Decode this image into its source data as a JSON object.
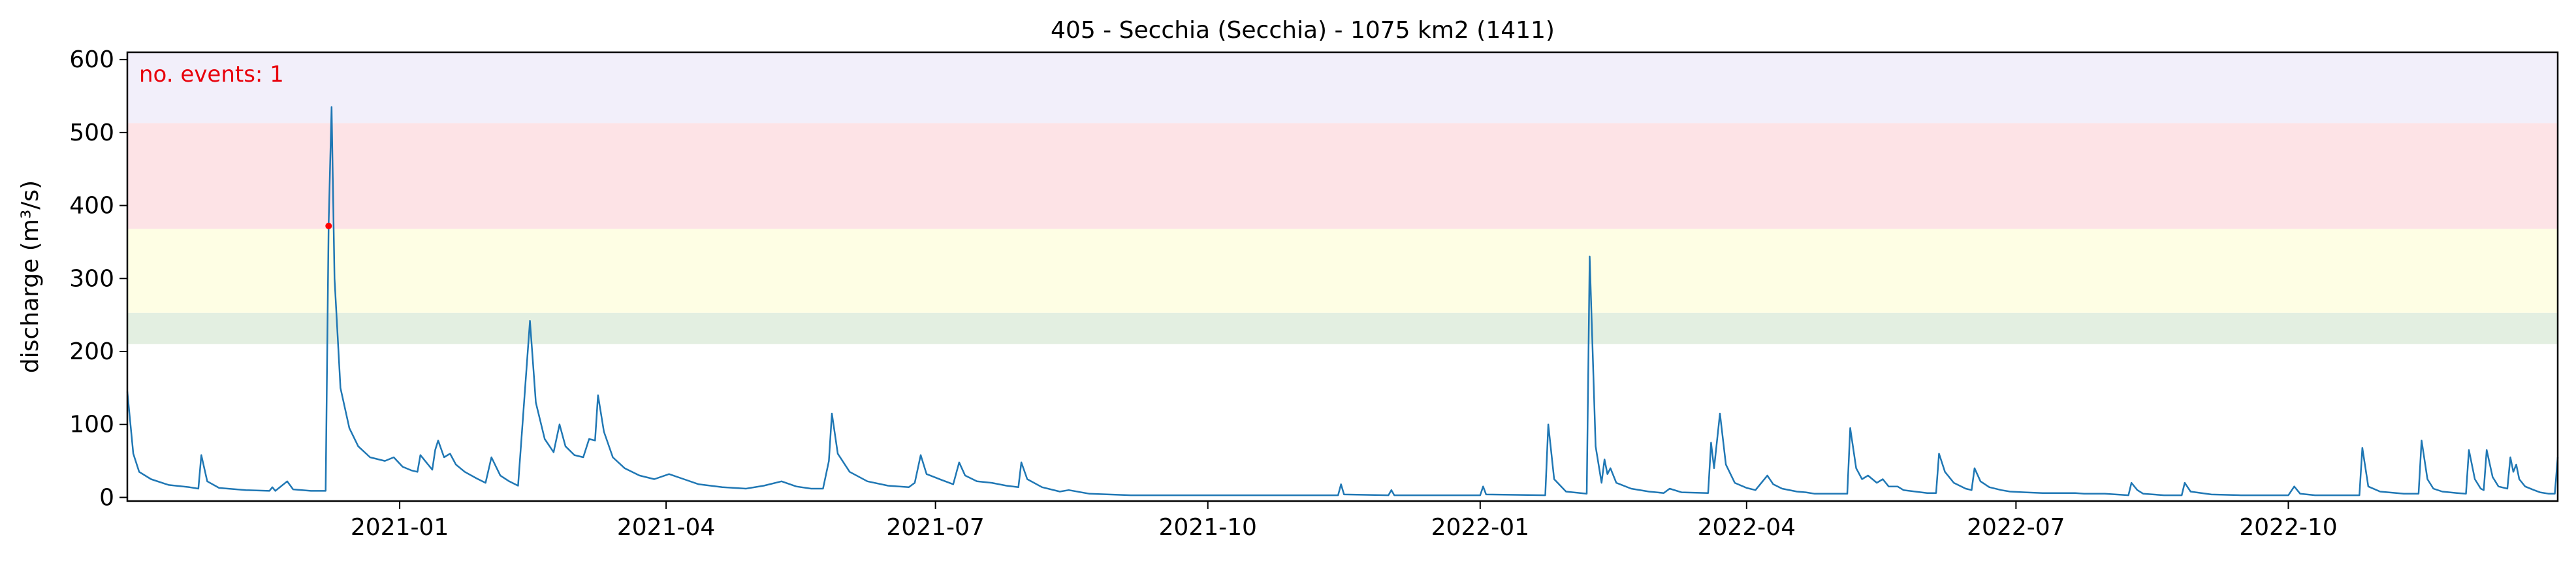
{
  "chart_data": {
    "type": "line",
    "title": "405 - Secchia (Secchia) - 1075 km2 (1411)",
    "xlabel": "",
    "ylabel": "discharge (m³/s)",
    "xlim": [
      "2020-10-01",
      "2022-12-31"
    ],
    "ylim": [
      -5,
      610
    ],
    "grid": false,
    "x_ticks": [
      "2021-01",
      "2021-04",
      "2021-07",
      "2021-10",
      "2022-01",
      "2022-04",
      "2022-07",
      "2022-10"
    ],
    "x_tick_dates": [
      "2021-01-01",
      "2021-04-01",
      "2021-07-01",
      "2021-10-01",
      "2022-01-01",
      "2022-04-01",
      "2022-07-01",
      "2022-10-01"
    ],
    "y_ticks": [
      0,
      100,
      200,
      300,
      400,
      500,
      600
    ],
    "bands": [
      {
        "from": 210,
        "to": 253,
        "color": "#e3efe1"
      },
      {
        "from": 253,
        "to": 368,
        "color": "#fefee4"
      },
      {
        "from": 368,
        "to": 513,
        "color": "#fde3e6"
      },
      {
        "from": 513,
        "to": 610,
        "color": "#f2effa"
      }
    ],
    "annotation": {
      "text": "no. events: 1",
      "color": "#e8000b"
    },
    "line_color": "#1f77b4",
    "event_marker": {
      "date": "2020-12-08",
      "value": 372,
      "color": "#ff0000"
    },
    "series": [
      {
        "points": [
          [
            "2020-10-01",
            145
          ],
          [
            "2020-10-03",
            60
          ],
          [
            "2020-10-05",
            35
          ],
          [
            "2020-10-09",
            25
          ],
          [
            "2020-10-15",
            17
          ],
          [
            "2020-10-22",
            14
          ],
          [
            "2020-10-25",
            12
          ],
          [
            "2020-10-26",
            58
          ],
          [
            "2020-10-28",
            22
          ],
          [
            "2020-11-01",
            13
          ],
          [
            "2020-11-10",
            10
          ],
          [
            "2020-11-18",
            9
          ],
          [
            "2020-11-19",
            14
          ],
          [
            "2020-11-20",
            9
          ],
          [
            "2020-11-24",
            22
          ],
          [
            "2020-11-26",
            11
          ],
          [
            "2020-12-02",
            9
          ],
          [
            "2020-12-07",
            9
          ],
          [
            "2020-12-08",
            375
          ],
          [
            "2020-12-09",
            535
          ],
          [
            "2020-12-10",
            300
          ],
          [
            "2020-12-12",
            150
          ],
          [
            "2020-12-15",
            95
          ],
          [
            "2020-12-18",
            70
          ],
          [
            "2020-12-22",
            55
          ],
          [
            "2020-12-27",
            50
          ],
          [
            "2020-12-30",
            55
          ],
          [
            "2021-01-02",
            42
          ],
          [
            "2021-01-05",
            37
          ],
          [
            "2021-01-07",
            35
          ],
          [
            "2021-01-08",
            58
          ],
          [
            "2021-01-10",
            48
          ],
          [
            "2021-01-12",
            38
          ],
          [
            "2021-01-13",
            65
          ],
          [
            "2021-01-14",
            78
          ],
          [
            "2021-01-16",
            55
          ],
          [
            "2021-01-18",
            60
          ],
          [
            "2021-01-20",
            45
          ],
          [
            "2021-01-23",
            35
          ],
          [
            "2021-01-27",
            26
          ],
          [
            "2021-01-30",
            20
          ],
          [
            "2021-02-01",
            55
          ],
          [
            "2021-02-04",
            30
          ],
          [
            "2021-02-07",
            22
          ],
          [
            "2021-02-10",
            16
          ],
          [
            "2021-02-14",
            242
          ],
          [
            "2021-02-16",
            130
          ],
          [
            "2021-02-19",
            80
          ],
          [
            "2021-02-22",
            62
          ],
          [
            "2021-02-24",
            100
          ],
          [
            "2021-02-26",
            70
          ],
          [
            "2021-03-01",
            58
          ],
          [
            "2021-03-04",
            55
          ],
          [
            "2021-03-06",
            80
          ],
          [
            "2021-03-08",
            78
          ],
          [
            "2021-03-09",
            140
          ],
          [
            "2021-03-11",
            90
          ],
          [
            "2021-03-14",
            55
          ],
          [
            "2021-03-18",
            40
          ],
          [
            "2021-03-23",
            30
          ],
          [
            "2021-03-28",
            25
          ],
          [
            "2021-04-02",
            32
          ],
          [
            "2021-04-07",
            25
          ],
          [
            "2021-04-12",
            18
          ],
          [
            "2021-04-20",
            14
          ],
          [
            "2021-04-28",
            12
          ],
          [
            "2021-05-04",
            16
          ],
          [
            "2021-05-10",
            22
          ],
          [
            "2021-05-15",
            15
          ],
          [
            "2021-05-20",
            12
          ],
          [
            "2021-05-24",
            12
          ],
          [
            "2021-05-26",
            50
          ],
          [
            "2021-05-27",
            115
          ],
          [
            "2021-05-29",
            60
          ],
          [
            "2021-06-02",
            35
          ],
          [
            "2021-06-08",
            22
          ],
          [
            "2021-06-15",
            16
          ],
          [
            "2021-06-22",
            14
          ],
          [
            "2021-06-24",
            20
          ],
          [
            "2021-06-26",
            58
          ],
          [
            "2021-06-28",
            32
          ],
          [
            "2021-07-03",
            24
          ],
          [
            "2021-07-07",
            18
          ],
          [
            "2021-07-09",
            48
          ],
          [
            "2021-07-11",
            30
          ],
          [
            "2021-07-15",
            22
          ],
          [
            "2021-07-20",
            20
          ],
          [
            "2021-07-25",
            16
          ],
          [
            "2021-07-29",
            14
          ],
          [
            "2021-07-30",
            48
          ],
          [
            "2021-08-01",
            25
          ],
          [
            "2021-08-06",
            14
          ],
          [
            "2021-08-12",
            8
          ],
          [
            "2021-08-15",
            10
          ],
          [
            "2021-08-22",
            5
          ],
          [
            "2021-09-05",
            3
          ],
          [
            "2021-09-30",
            3
          ],
          [
            "2021-10-28",
            3
          ],
          [
            "2021-11-14",
            3
          ],
          [
            "2021-11-15",
            18
          ],
          [
            "2021-11-16",
            4
          ],
          [
            "2021-12-01",
            3
          ],
          [
            "2021-12-02",
            10
          ],
          [
            "2021-12-03",
            3
          ],
          [
            "2022-01-01",
            3
          ],
          [
            "2022-01-02",
            15
          ],
          [
            "2022-01-03",
            4
          ],
          [
            "2022-01-23",
            3
          ],
          [
            "2022-01-24",
            100
          ],
          [
            "2022-01-26",
            25
          ],
          [
            "2022-01-30",
            8
          ],
          [
            "2022-02-06",
            5
          ],
          [
            "2022-02-07",
            330
          ],
          [
            "2022-02-09",
            70
          ],
          [
            "2022-02-11",
            20
          ],
          [
            "2022-02-12",
            52
          ],
          [
            "2022-02-13",
            32
          ],
          [
            "2022-02-14",
            40
          ],
          [
            "2022-02-16",
            20
          ],
          [
            "2022-02-21",
            12
          ],
          [
            "2022-02-27",
            8
          ],
          [
            "2022-03-04",
            6
          ],
          [
            "2022-03-06",
            12
          ],
          [
            "2022-03-10",
            7
          ],
          [
            "2022-03-19",
            6
          ],
          [
            "2022-03-20",
            75
          ],
          [
            "2022-03-21",
            40
          ],
          [
            "2022-03-23",
            115
          ],
          [
            "2022-03-25",
            45
          ],
          [
            "2022-03-28",
            20
          ],
          [
            "2022-04-01",
            13
          ],
          [
            "2022-04-04",
            10
          ],
          [
            "2022-04-08",
            30
          ],
          [
            "2022-04-10",
            18
          ],
          [
            "2022-04-13",
            12
          ],
          [
            "2022-04-18",
            8
          ],
          [
            "2022-04-21",
            7
          ],
          [
            "2022-04-24",
            5
          ],
          [
            "2022-05-05",
            5
          ],
          [
            "2022-05-06",
            95
          ],
          [
            "2022-05-08",
            40
          ],
          [
            "2022-05-10",
            25
          ],
          [
            "2022-05-12",
            30
          ],
          [
            "2022-05-15",
            20
          ],
          [
            "2022-05-17",
            25
          ],
          [
            "2022-05-19",
            15
          ],
          [
            "2022-05-22",
            15
          ],
          [
            "2022-05-24",
            10
          ],
          [
            "2022-05-28",
            8
          ],
          [
            "2022-06-01",
            6
          ],
          [
            "2022-06-04",
            6
          ],
          [
            "2022-06-05",
            60
          ],
          [
            "2022-06-07",
            35
          ],
          [
            "2022-06-10",
            20
          ],
          [
            "2022-06-14",
            12
          ],
          [
            "2022-06-16",
            10
          ],
          [
            "2022-06-17",
            40
          ],
          [
            "2022-06-19",
            22
          ],
          [
            "2022-06-22",
            14
          ],
          [
            "2022-06-26",
            10
          ],
          [
            "2022-06-29",
            8
          ],
          [
            "2022-07-04",
            7
          ],
          [
            "2022-07-10",
            6
          ],
          [
            "2022-07-15",
            6
          ],
          [
            "2022-07-21",
            6
          ],
          [
            "2022-07-24",
            5
          ],
          [
            "2022-07-31",
            5
          ],
          [
            "2022-08-08",
            3
          ],
          [
            "2022-08-09",
            20
          ],
          [
            "2022-08-11",
            10
          ],
          [
            "2022-08-13",
            5
          ],
          [
            "2022-08-20",
            3
          ],
          [
            "2022-08-26",
            3
          ],
          [
            "2022-08-27",
            20
          ],
          [
            "2022-08-29",
            8
          ],
          [
            "2022-09-05",
            4
          ],
          [
            "2022-09-15",
            3
          ],
          [
            "2022-09-28",
            3
          ],
          [
            "2022-10-01",
            3
          ],
          [
            "2022-10-03",
            15
          ],
          [
            "2022-10-05",
            5
          ],
          [
            "2022-10-10",
            3
          ],
          [
            "2022-10-25",
            3
          ],
          [
            "2022-10-26",
            68
          ],
          [
            "2022-10-28",
            15
          ],
          [
            "2022-11-01",
            8
          ],
          [
            "2022-11-09",
            5
          ],
          [
            "2022-11-14",
            5
          ],
          [
            "2022-11-15",
            78
          ],
          [
            "2022-11-17",
            25
          ],
          [
            "2022-11-19",
            12
          ],
          [
            "2022-11-22",
            8
          ],
          [
            "2022-11-27",
            6
          ],
          [
            "2022-11-30",
            5
          ],
          [
            "2022-12-01",
            65
          ],
          [
            "2022-12-03",
            25
          ],
          [
            "2022-12-05",
            12
          ],
          [
            "2022-12-06",
            10
          ],
          [
            "2022-12-07",
            65
          ],
          [
            "2022-12-09",
            28
          ],
          [
            "2022-12-11",
            15
          ],
          [
            "2022-12-14",
            12
          ],
          [
            "2022-12-15",
            55
          ],
          [
            "2022-12-16",
            35
          ],
          [
            "2022-12-17",
            45
          ],
          [
            "2022-12-18",
            25
          ],
          [
            "2022-12-20",
            15
          ],
          [
            "2022-12-23",
            10
          ],
          [
            "2022-12-25",
            7
          ],
          [
            "2022-12-28",
            5
          ],
          [
            "2022-12-30",
            5
          ],
          [
            "2022-12-31",
            55
          ]
        ]
      }
    ]
  }
}
